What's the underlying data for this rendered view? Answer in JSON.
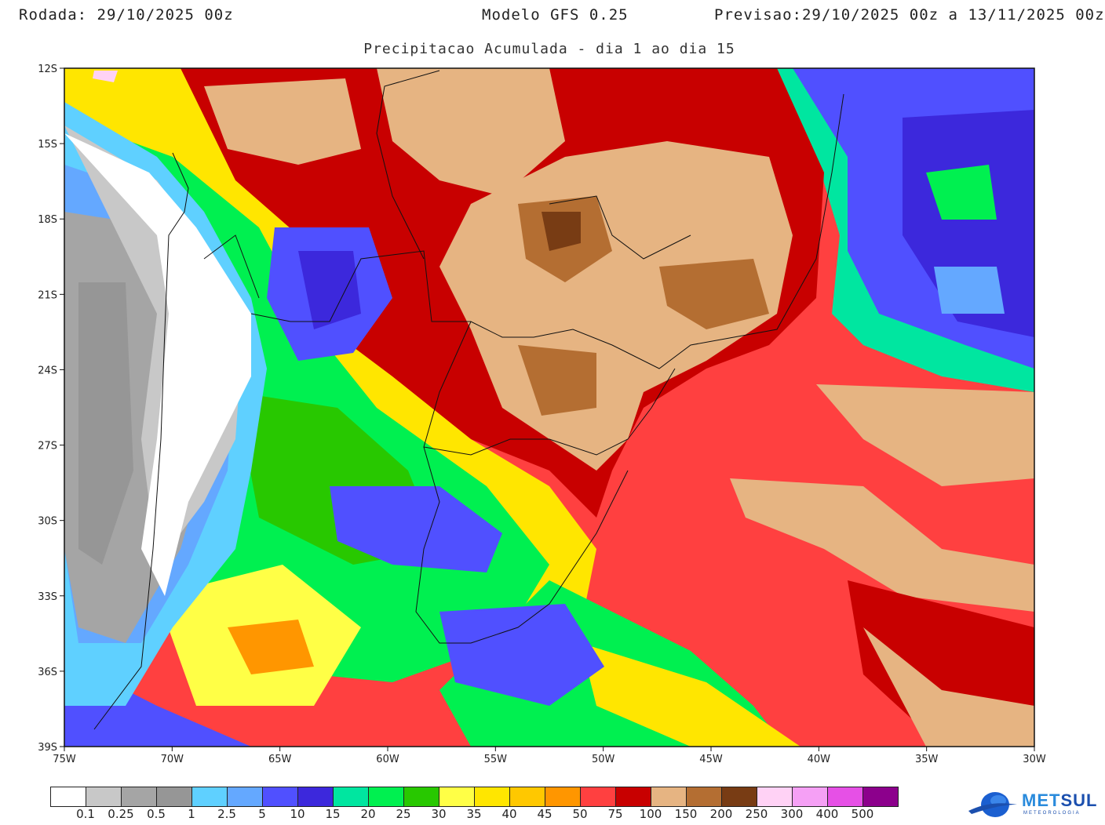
{
  "header": {
    "run_label": "Rodada:",
    "run_value": "29/10/2025 00z",
    "model": "Modelo GFS 0.25",
    "forecast_label": "Previsao:",
    "forecast_value": "29/10/2025 00z a 13/11/2025 00z"
  },
  "subtitle": "Precipitacao Acumulada - dia 1 ao dia 15",
  "map": {
    "lat_labels": [
      "12S",
      "15S",
      "18S",
      "21S",
      "24S",
      "27S",
      "30S",
      "33S",
      "36S",
      "39S"
    ],
    "lon_labels": [
      "75W",
      "70W",
      "65W",
      "60W",
      "55W",
      "50W",
      "45W",
      "40W",
      "35W",
      "30W"
    ]
  },
  "legend": {
    "colors": [
      "#ffffff",
      "#c8c8c8",
      "#a5a5a5",
      "#969696",
      "#5fd0ff",
      "#64a8ff",
      "#5050ff",
      "#3c28dc",
      "#00e6a0",
      "#00f050",
      "#28c800",
      "#ffff46",
      "#ffe600",
      "#ffc800",
      "#ff9600",
      "#ff4040",
      "#c80000",
      "#e6b482",
      "#b46e32",
      "#783c14",
      "#ffd2f5",
      "#f5a0f5",
      "#e650e6",
      "#8c008c"
    ],
    "labels": [
      "0.1",
      "0.25",
      "0.5",
      "1",
      "2.5",
      "5",
      "10",
      "15",
      "20",
      "25",
      "30",
      "35",
      "40",
      "45",
      "50",
      "75",
      "100",
      "150",
      "200",
      "250",
      "300",
      "400",
      "500"
    ]
  },
  "logo": {
    "brand_a": "MET",
    "brand_b": "SUL",
    "tagline": "METEOROLOGIA"
  }
}
